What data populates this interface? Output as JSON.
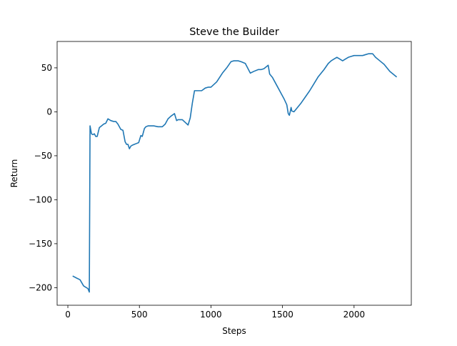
{
  "chart_data": {
    "type": "line",
    "title": "Steve the Builder",
    "xlabel": "Steps",
    "ylabel": "Return",
    "xlim": [
      -75,
      2400
    ],
    "ylim": [
      -220,
      80
    ],
    "xticks": [
      0,
      500,
      1000,
      1500,
      2000
    ],
    "yticks": [
      -200,
      -150,
      -100,
      -50,
      0,
      50
    ],
    "xtick_labels": [
      "0",
      "500",
      "1000",
      "1500",
      "2000"
    ],
    "ytick_labels": [
      "−200",
      "−150",
      "−100",
      "−50",
      "0",
      "50"
    ],
    "grid": false,
    "series": [
      {
        "color": "#1f77b4",
        "x": [
          37,
          60,
          85,
          110,
          130,
          140,
          145,
          150,
          155,
          165,
          175,
          185,
          195,
          205,
          220,
          235,
          250,
          265,
          280,
          300,
          320,
          335,
          350,
          370,
          385,
          400,
          410,
          420,
          430,
          440,
          450,
          465,
          480,
          495,
          510,
          520,
          535,
          545,
          560,
          580,
          600,
          630,
          660,
          680,
          700,
          720,
          745,
          760,
          770,
          780,
          800,
          820,
          840,
          855,
          870,
          885,
          910,
          935,
          960,
          980,
          1000,
          1040,
          1080,
          1110,
          1140,
          1160,
          1190,
          1210,
          1240,
          1275,
          1300,
          1330,
          1350,
          1370,
          1400,
          1410,
          1430,
          1450,
          1470,
          1490,
          1510,
          1530,
          1540,
          1548,
          1555,
          1560,
          1565,
          1580,
          1600,
          1630,
          1660,
          1690,
          1720,
          1750,
          1790,
          1820,
          1840,
          1860,
          1880,
          1900,
          1920,
          1940,
          1960,
          1980,
          2000,
          2020,
          2040,
          2060,
          2080,
          2100,
          2130,
          2150,
          2180,
          2210,
          2250,
          2295
        ],
        "y": [
          -187,
          -189,
          -191,
          -198,
          -200,
          -201,
          -203,
          -205,
          -16,
          -25,
          -26,
          -25,
          -28,
          -28,
          -18,
          -16,
          -14,
          -13,
          -8,
          -10,
          -11,
          -11,
          -14,
          -20,
          -21,
          -34,
          -37,
          -37,
          -42,
          -39,
          -38,
          -37,
          -36,
          -35,
          -27,
          -28,
          -19,
          -17,
          -16,
          -16,
          -16,
          -17,
          -17,
          -14,
          -8,
          -5,
          -2,
          -10,
          -9,
          -9,
          -9,
          -12,
          -15,
          -7,
          10,
          24,
          24,
          24,
          27,
          28,
          28,
          34,
          44,
          50,
          57,
          58,
          58,
          57,
          55,
          44,
          46,
          48,
          48,
          49,
          53,
          43,
          39,
          33,
          27,
          21,
          15,
          8,
          -2,
          -4,
          1,
          5,
          1,
          0,
          4,
          10,
          17,
          24,
          32,
          40,
          48,
          55,
          58,
          60,
          62,
          60,
          58,
          60,
          62,
          63,
          64,
          64,
          64,
          64,
          65,
          66,
          66,
          62,
          58,
          54,
          46,
          40
        ]
      }
    ]
  }
}
